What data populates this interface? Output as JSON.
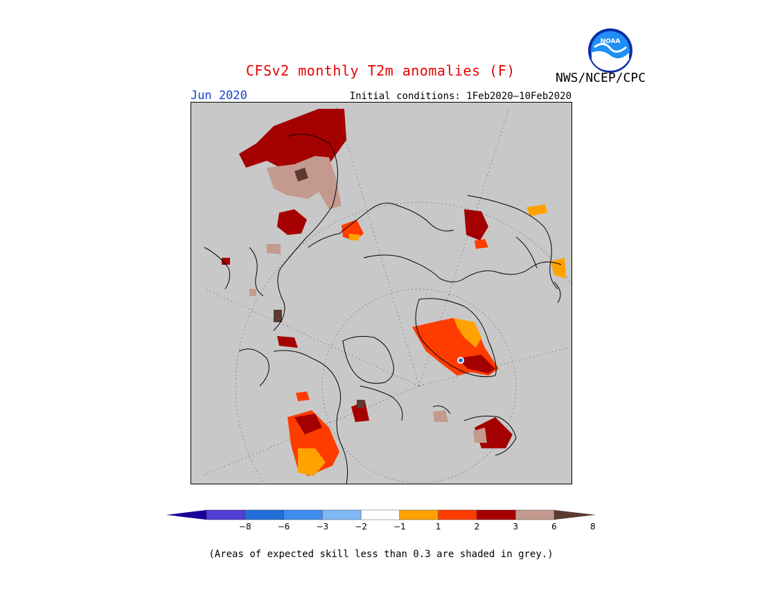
{
  "title": "CFSv2 monthly T2m anomalies (F)",
  "agency": "NWS/NCEP/CPC",
  "logo_text": "NOAA",
  "month": "Jun 2020",
  "initial_conditions": "Initial conditions: 1Feb2020–10Feb2020",
  "map": {
    "projection": "polar-stereographic-north",
    "background_color": "#c8c8c8",
    "coastline_color": "#000000",
    "grid": "dotted"
  },
  "colorbar": {
    "colors": [
      "#1c0099",
      "#4f3fd4",
      "#1f6fd6",
      "#3f8ff0",
      "#7fb7f5",
      "#ffffff",
      "#ffa200",
      "#ff3c00",
      "#a50000",
      "#c49a8e",
      "#5c3b33"
    ],
    "ticks": [
      "−8",
      "−6",
      "−3",
      "−2",
      "−1",
      "1",
      "2",
      "3",
      "6",
      "8"
    ]
  },
  "note": "(Areas of expected skill less than 0.3 are shaded in grey.)"
}
